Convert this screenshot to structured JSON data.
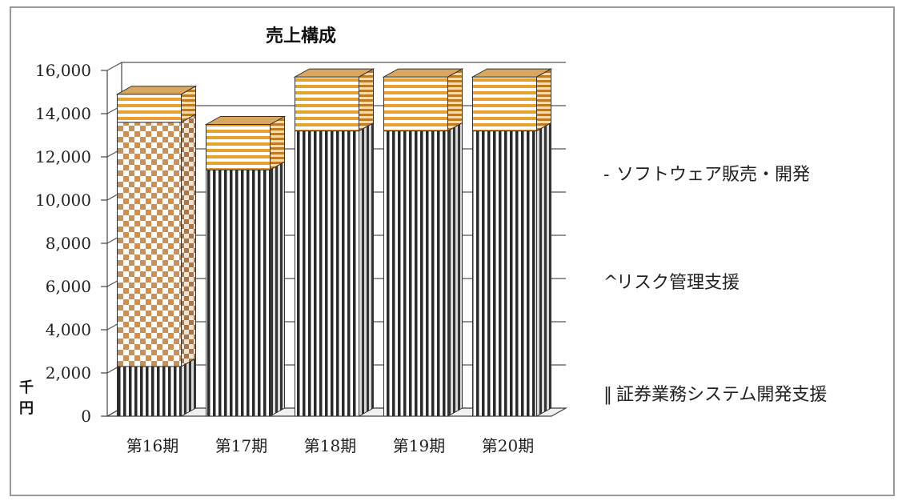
{
  "chart_data": {
    "type": "bar",
    "stacked": true,
    "style": "3d",
    "title": "売上構成",
    "unit_label": "千円",
    "categories": [
      "第16期",
      "第17期",
      "第18期",
      "第19期",
      "第20期"
    ],
    "y_ticks": [
      "0",
      "2,000",
      "4,000",
      "6,000",
      "8,000",
      "10,000",
      "12,000",
      "14,000",
      "16,000"
    ],
    "ylim": [
      0,
      16000
    ],
    "grid": true,
    "legend_position": "right",
    "series": [
      {
        "name": "証券業務システム開発支援",
        "legend_label": "証券業務システム開発支援",
        "legend_marker": "‖",
        "pattern": "vertical-stripes",
        "color": "#2a2a2a",
        "values": [
          2300,
          11400,
          13200,
          13200,
          13200
        ]
      },
      {
        "name": "リスク管理支援",
        "legend_label": "リスク管理支援",
        "legend_marker": "^",
        "pattern": "checker",
        "color": "#c99058",
        "values": [
          11300,
          0,
          0,
          0,
          0
        ]
      },
      {
        "name": "ソフトウェア販売・開発",
        "legend_label": "ソフトウェア販売・開発",
        "legend_marker": "-",
        "pattern": "horizontal-stripes",
        "color": "#e8a030",
        "values": [
          1300,
          2100,
          2500,
          2500,
          2500
        ]
      }
    ]
  }
}
